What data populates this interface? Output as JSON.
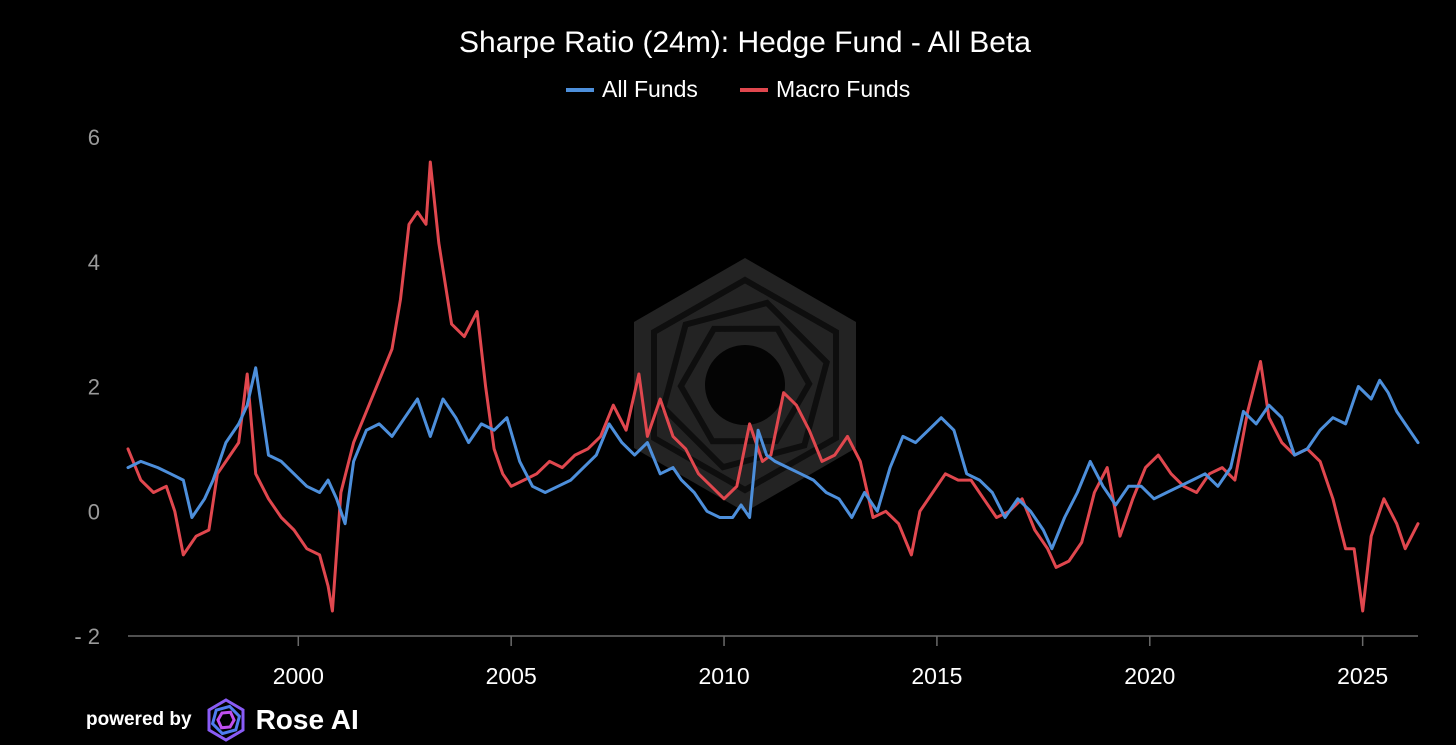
{
  "chart_data": {
    "type": "line",
    "title": "Sharpe Ratio (24m): Hedge Fund - All Beta",
    "xlabel": "",
    "ylabel": "",
    "xlim": [
      1996.0,
      2026.3
    ],
    "ylim": [
      -2,
      6
    ],
    "yticks": [
      "6",
      "4",
      "2",
      "0",
      "- 2"
    ],
    "ytick_values": [
      6,
      4,
      2,
      0,
      -2
    ],
    "xticks": [
      "2000",
      "2005",
      "2010",
      "2015",
      "2020",
      "2025"
    ],
    "xtick_values": [
      2000,
      2005,
      2010,
      2015,
      2020,
      2025
    ],
    "grid": false,
    "legend": "top-center",
    "series": [
      {
        "name": "All Funds",
        "color": "#4d8fdb",
        "x": [
          1996.0,
          1996.3,
          1996.7,
          1997.0,
          1997.3,
          1997.5,
          1997.8,
          1998.0,
          1998.3,
          1998.6,
          1998.8,
          1999.0,
          1999.3,
          1999.6,
          1999.9,
          2000.2,
          2000.5,
          2000.7,
          2000.9,
          2001.1,
          2001.3,
          2001.6,
          2001.9,
          2002.2,
          2002.5,
          2002.8,
          2003.1,
          2003.4,
          2003.7,
          2004.0,
          2004.3,
          2004.6,
          2004.9,
          2005.2,
          2005.5,
          2005.8,
          2006.1,
          2006.4,
          2006.7,
          2007.0,
          2007.3,
          2007.6,
          2007.9,
          2008.2,
          2008.5,
          2008.8,
          2009.0,
          2009.3,
          2009.6,
          2009.9,
          2010.2,
          2010.4,
          2010.6,
          2010.8,
          2011.0,
          2011.2,
          2011.5,
          2011.8,
          2012.1,
          2012.4,
          2012.7,
          2013.0,
          2013.3,
          2013.6,
          2013.9,
          2014.2,
          2014.5,
          2014.8,
          2015.1,
          2015.4,
          2015.7,
          2016.0,
          2016.3,
          2016.6,
          2016.9,
          2017.2,
          2017.5,
          2017.7,
          2018.0,
          2018.3,
          2018.6,
          2018.9,
          2019.2,
          2019.5,
          2019.8,
          2020.1,
          2020.4,
          2020.7,
          2021.0,
          2021.3,
          2021.6,
          2021.9,
          2022.2,
          2022.5,
          2022.8,
          2023.1,
          2023.4,
          2023.7,
          2024.0,
          2024.3,
          2024.6,
          2024.9,
          2025.2,
          2025.4,
          2025.6,
          2025.8,
          2026.0,
          2026.3
        ],
        "y": [
          0.7,
          0.8,
          0.7,
          0.6,
          0.5,
          -0.1,
          0.2,
          0.5,
          1.1,
          1.4,
          1.7,
          2.3,
          0.9,
          0.8,
          0.6,
          0.4,
          0.3,
          0.5,
          0.2,
          -0.2,
          0.8,
          1.3,
          1.4,
          1.2,
          1.5,
          1.8,
          1.2,
          1.8,
          1.5,
          1.1,
          1.4,
          1.3,
          1.5,
          0.8,
          0.4,
          0.3,
          0.4,
          0.5,
          0.7,
          0.9,
          1.4,
          1.1,
          0.9,
          1.1,
          0.6,
          0.7,
          0.5,
          0.3,
          0.0,
          -0.1,
          -0.1,
          0.1,
          -0.1,
          1.3,
          0.9,
          0.8,
          0.7,
          0.6,
          0.5,
          0.3,
          0.2,
          -0.1,
          0.3,
          0.0,
          0.7,
          1.2,
          1.1,
          1.3,
          1.5,
          1.3,
          0.6,
          0.5,
          0.3,
          -0.1,
          0.2,
          0.0,
          -0.3,
          -0.6,
          -0.1,
          0.3,
          0.8,
          0.4,
          0.1,
          0.4,
          0.4,
          0.2,
          0.3,
          0.4,
          0.5,
          0.6,
          0.4,
          0.7,
          1.6,
          1.4,
          1.7,
          1.5,
          0.9,
          1.0,
          1.3,
          1.5,
          1.4,
          2.0,
          1.8,
          2.1,
          1.9,
          1.6,
          1.4,
          1.1
        ]
      },
      {
        "name": "Macro Funds",
        "color": "#e0474e",
        "x": [
          1996.0,
          1996.3,
          1996.6,
          1996.9,
          1997.1,
          1997.3,
          1997.6,
          1997.9,
          1998.1,
          1998.3,
          1998.6,
          1998.8,
          1999.0,
          1999.3,
          1999.6,
          1999.9,
          2000.2,
          2000.5,
          2000.7,
          2000.8,
          2001.0,
          2001.3,
          2001.6,
          2001.9,
          2002.2,
          2002.4,
          2002.6,
          2002.8,
          2003.0,
          2003.1,
          2003.3,
          2003.6,
          2003.9,
          2004.2,
          2004.4,
          2004.6,
          2004.8,
          2005.0,
          2005.3,
          2005.6,
          2005.9,
          2006.2,
          2006.5,
          2006.8,
          2007.1,
          2007.4,
          2007.7,
          2008.0,
          2008.2,
          2008.5,
          2008.8,
          2009.1,
          2009.4,
          2009.7,
          2010.0,
          2010.3,
          2010.6,
          2010.9,
          2011.1,
          2011.4,
          2011.7,
          2012.0,
          2012.3,
          2012.6,
          2012.9,
          2013.2,
          2013.5,
          2013.8,
          2014.1,
          2014.4,
          2014.6,
          2014.9,
          2015.2,
          2015.5,
          2015.8,
          2016.1,
          2016.4,
          2016.7,
          2017.0,
          2017.3,
          2017.6,
          2017.8,
          2018.1,
          2018.4,
          2018.7,
          2019.0,
          2019.3,
          2019.6,
          2019.9,
          2020.2,
          2020.5,
          2020.8,
          2021.1,
          2021.4,
          2021.7,
          2022.0,
          2022.3,
          2022.6,
          2022.8,
          2023.1,
          2023.4,
          2023.7,
          2024.0,
          2024.3,
          2024.6,
          2024.8,
          2025.0,
          2025.2,
          2025.5,
          2025.8,
          2026.0,
          2026.3
        ],
        "y": [
          1.0,
          0.5,
          0.3,
          0.4,
          0.0,
          -0.7,
          -0.4,
          -0.3,
          0.6,
          0.8,
          1.1,
          2.2,
          0.6,
          0.2,
          -0.1,
          -0.3,
          -0.6,
          -0.7,
          -1.2,
          -1.6,
          0.3,
          1.1,
          1.6,
          2.1,
          2.6,
          3.4,
          4.6,
          4.8,
          4.6,
          5.6,
          4.3,
          3.0,
          2.8,
          3.2,
          2.0,
          1.0,
          0.6,
          0.4,
          0.5,
          0.6,
          0.8,
          0.7,
          0.9,
          1.0,
          1.2,
          1.7,
          1.3,
          2.2,
          1.2,
          1.8,
          1.2,
          1.0,
          0.6,
          0.4,
          0.2,
          0.4,
          1.4,
          0.8,
          0.9,
          1.9,
          1.7,
          1.3,
          0.8,
          0.9,
          1.2,
          0.8,
          -0.1,
          0.0,
          -0.2,
          -0.7,
          0.0,
          0.3,
          0.6,
          0.5,
          0.5,
          0.2,
          -0.1,
          0.0,
          0.2,
          -0.3,
          -0.6,
          -0.9,
          -0.8,
          -0.5,
          0.3,
          0.7,
          -0.4,
          0.2,
          0.7,
          0.9,
          0.6,
          0.4,
          0.3,
          0.6,
          0.7,
          0.5,
          1.6,
          2.4,
          1.5,
          1.1,
          0.9,
          1.0,
          0.8,
          0.2,
          -0.6,
          -0.6,
          -1.6,
          -0.4,
          0.2,
          -0.2,
          -0.6,
          -0.2
        ]
      }
    ]
  },
  "footer": {
    "powered_by": "powered by",
    "brand": "Rose AI"
  },
  "colors": {
    "background": "#000000",
    "all_funds": "#4d8fdb",
    "macro_funds": "#e0474e"
  }
}
